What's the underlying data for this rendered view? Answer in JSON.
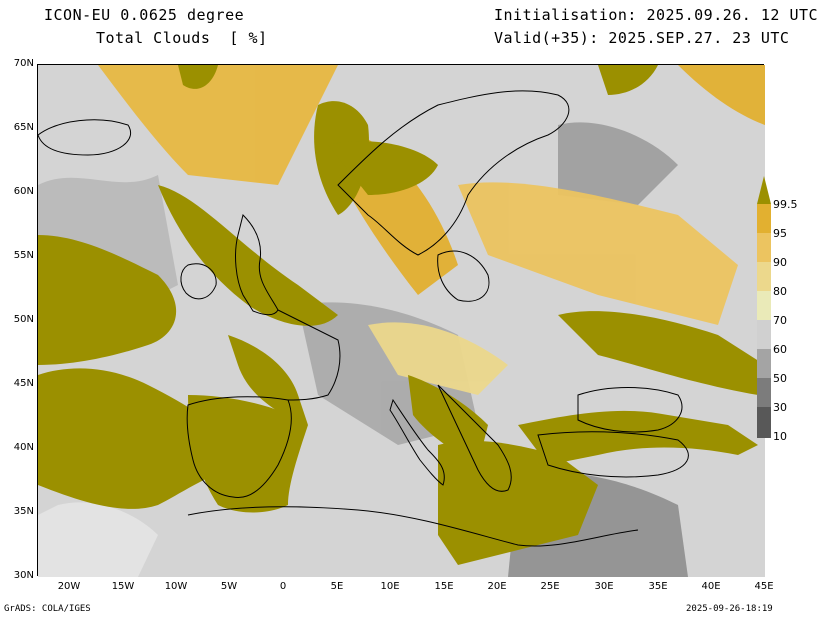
{
  "header": {
    "model": "ICON-EU 0.0625 degree",
    "variable": "Total Clouds  [ %]",
    "initialisation": "Initialisation: 2025.09.26. 12 UTC",
    "valid": "Valid(+35): 2025.SEP.27. 23 UTC"
  },
  "axes": {
    "lat_labels": [
      "70N",
      "65N",
      "60N",
      "55N",
      "50N",
      "45N",
      "40N",
      "35N",
      "30N"
    ],
    "lon_labels": [
      "20W",
      "15W",
      "10W",
      "5W",
      "0",
      "5E",
      "10E",
      "15E",
      "20E",
      "25E",
      "30E",
      "35E",
      "40E",
      "45E"
    ]
  },
  "legend": {
    "levels": [
      "99.5",
      "95",
      "90",
      "80",
      "70",
      "60",
      "50",
      "30",
      "10"
    ],
    "colors": [
      "#9b9000",
      "#e2b030",
      "#ecc460",
      "#ecd88c",
      "#eaeab8",
      "#d0d0d0",
      "#a4a4a4",
      "#7c7c7c",
      "#585858"
    ]
  },
  "map_colors": {
    "ocean_clear": "#d9d9d9",
    "overcast": "#9b9000",
    "coast": "#000000"
  },
  "footer": {
    "left": "GrADS: COLA/IGES",
    "right": "2025-09-26-18:19"
  }
}
